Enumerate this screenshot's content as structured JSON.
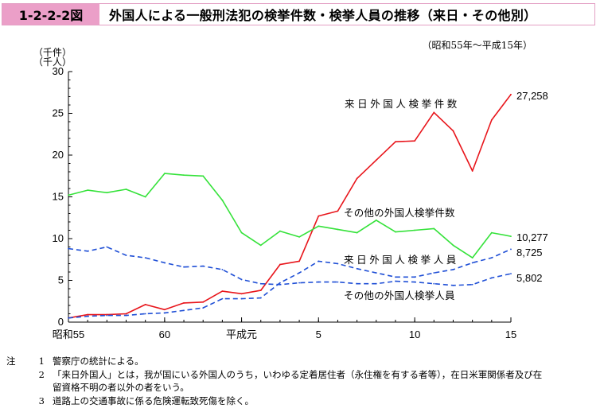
{
  "header": {
    "figure_number": "1-2-2-2図",
    "title": "外国人による一般刑法犯の検挙件数・検挙人員の推移（来日・その他別）"
  },
  "period": "（昭和55年～平成15年）",
  "chart_data": {
    "type": "line",
    "y_unit_labels": [
      "（千件）",
      "（千人）"
    ],
    "ylim": [
      0,
      30
    ],
    "yticks": [
      0,
      5,
      10,
      15,
      20,
      25,
      30
    ],
    "x": [
      1980,
      1981,
      1982,
      1983,
      1984,
      1985,
      1986,
      1987,
      1988,
      1989,
      1990,
      1991,
      1992,
      1993,
      1994,
      1995,
      1996,
      1997,
      1998,
      1999,
      2000,
      2001,
      2002,
      2003
    ],
    "xtick_labels": [
      {
        "x": 1980,
        "label": "昭和55"
      },
      {
        "x": 1985,
        "label": "60"
      },
      {
        "x": 1989,
        "label": "平成元"
      },
      {
        "x": 1993,
        "label": "5"
      },
      {
        "x": 1998,
        "label": "10"
      },
      {
        "x": 2003,
        "label": "15"
      }
    ],
    "series": [
      {
        "name": "来日外国人検挙件数",
        "color": "#e8151b",
        "dash": false,
        "end_label": "27,258",
        "values": [
          0.5,
          0.9,
          0.9,
          1.0,
          2.1,
          1.5,
          2.3,
          2.4,
          3.7,
          3.4,
          3.8,
          6.9,
          7.3,
          12.7,
          13.3,
          17.2,
          19.4,
          21.6,
          21.7,
          25.1,
          22.9,
          18.1,
          24.2,
          27.258
        ]
      },
      {
        "name": "その他の外国人検挙件数",
        "color": "#35e23a",
        "dash": false,
        "end_label": "10,277",
        "values": [
          15.2,
          15.8,
          15.5,
          15.9,
          15.0,
          17.8,
          17.6,
          17.5,
          14.6,
          10.7,
          9.2,
          10.9,
          10.2,
          11.5,
          11.1,
          10.7,
          12.2,
          10.8,
          11.0,
          11.2,
          9.2,
          7.7,
          10.7,
          10.277
        ]
      },
      {
        "name": "来日外国人検挙人員",
        "color": "#1f4fd6",
        "dash": true,
        "end_label": "8,725",
        "values": [
          0.5,
          0.7,
          0.8,
          0.8,
          1.0,
          1.1,
          1.4,
          1.7,
          2.8,
          2.8,
          2.9,
          4.7,
          5.9,
          7.3,
          7.0,
          6.4,
          5.9,
          5.4,
          5.4,
          5.9,
          6.3,
          7.1,
          7.7,
          8.725
        ]
      },
      {
        "name": "その他の外国人検挙人員",
        "color": "#1f4fd6",
        "dash": true,
        "end_label": "5,802",
        "values": [
          8.8,
          8.5,
          9.0,
          8.0,
          7.7,
          7.1,
          6.6,
          6.7,
          6.3,
          5.1,
          4.6,
          4.5,
          4.7,
          4.8,
          4.8,
          4.6,
          4.6,
          4.9,
          4.8,
          4.6,
          4.4,
          4.5,
          5.3,
          5.802
        ]
      }
    ]
  },
  "notes": {
    "label": "注",
    "items": [
      {
        "num": "1",
        "text": "警察庁の統計による。"
      },
      {
        "num": "2",
        "text": "「来日外国人」とは，我が国にいる外国人のうち，いわゆる定着居住者（永住権を有する者等），在日米軍関係者及び在",
        "cont": "留資格不明の者以外の者をいう。"
      },
      {
        "num": "3",
        "text": "道路上の交通事故に係る危険運転致死傷を除く。"
      }
    ]
  }
}
